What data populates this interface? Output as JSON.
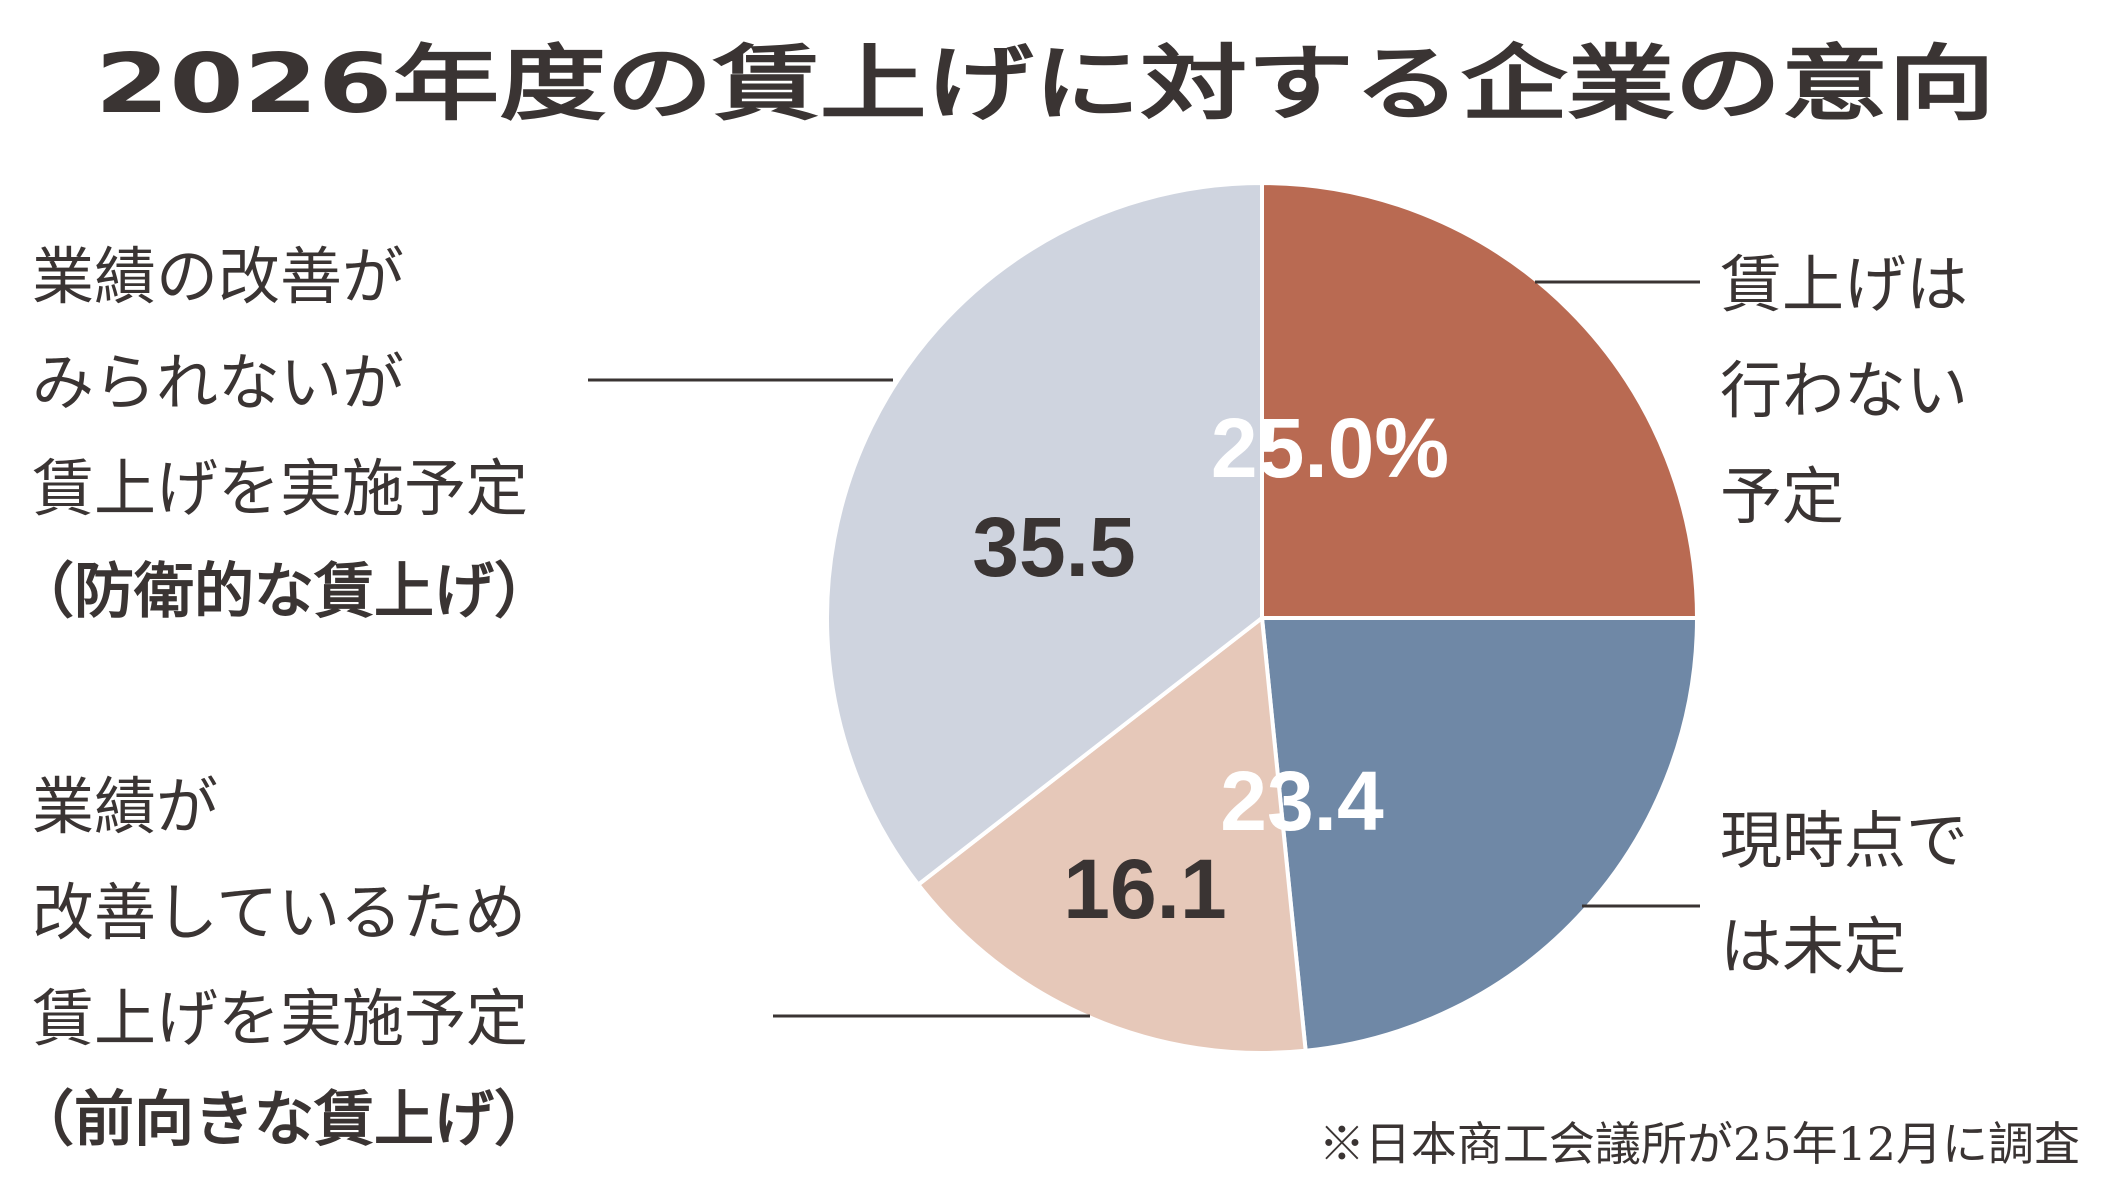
{
  "title": "2026年度の賃上げに対する企業の意向",
  "note": "※日本商工会議所が25年12月に調査",
  "colors": {
    "text": "#3a3433",
    "slice_none": "#b96a52",
    "slice_undecided": "#6f88a6",
    "slice_positive": "#e6c8b9",
    "slice_defensive": "#cfd4df",
    "value_light": "#ffffff",
    "value_dark": "#3a3433"
  },
  "chart_data": {
    "type": "pie",
    "start": "12 o'clock",
    "direction": "clockwise",
    "slices": [
      {
        "id": "none",
        "value": 25.0,
        "value_label": "25.0%",
        "label_lines": [
          "賃上げは",
          "行わない",
          "予定"
        ],
        "label_sub": ""
      },
      {
        "id": "undecided",
        "value": 23.4,
        "value_label": "23.4",
        "label_lines": [
          "現時点で",
          "は未定"
        ],
        "label_sub": ""
      },
      {
        "id": "positive",
        "value": 16.1,
        "value_label": "16.1",
        "label_lines": [
          "業績が",
          "改善しているため",
          "賃上げを実施予定"
        ],
        "label_sub": "（前向きな賃上げ）"
      },
      {
        "id": "defensive",
        "value": 35.5,
        "value_label": "35.5",
        "label_lines": [
          "業績の改善が",
          "みられないが",
          "賃上げを実施予定"
        ],
        "label_sub": "（防衛的な賃上げ）"
      }
    ]
  }
}
